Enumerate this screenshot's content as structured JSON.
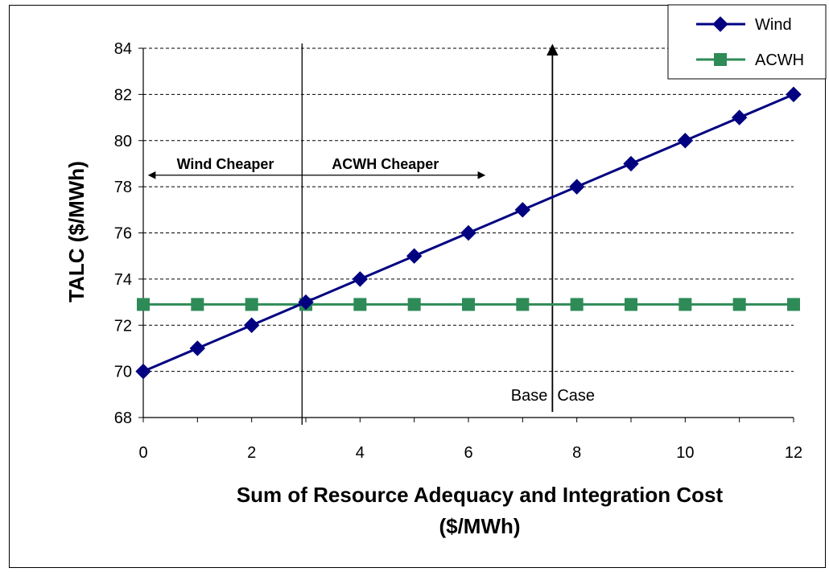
{
  "chart_data": {
    "type": "line",
    "title": "",
    "xlabel_line1": "Sum of Resource Adequacy and Integration Cost",
    "xlabel_line2": "($/MWh)",
    "ylabel": "TALC ($/MWh)",
    "xlim": [
      0,
      12
    ],
    "ylim": [
      68,
      84
    ],
    "x_ticks": [
      "0",
      "2",
      "4",
      "6",
      "8",
      "10",
      "12"
    ],
    "y_ticks": [
      "68",
      "70",
      "72",
      "74",
      "76",
      "78",
      "80",
      "82",
      "84"
    ],
    "grid": "horizontal dashed",
    "legend_position": "top-right",
    "x": [
      0,
      1,
      2,
      3,
      4,
      5,
      6,
      7,
      8,
      9,
      10,
      11,
      12
    ],
    "series": [
      {
        "name": "Wind",
        "color": "#000080",
        "marker": "diamond",
        "values": [
          70,
          71,
          72,
          73,
          74,
          75,
          76,
          77,
          78,
          79,
          80,
          81,
          82
        ]
      },
      {
        "name": "ACWH",
        "color": "#2e8b57",
        "marker": "square",
        "values": [
          72.9,
          72.9,
          72.9,
          72.9,
          72.9,
          72.9,
          72.9,
          72.9,
          72.9,
          72.9,
          72.9,
          72.9,
          72.9
        ]
      }
    ],
    "annotations": {
      "wind_cheaper": "Wind Cheaper",
      "acwh_cheaper": "ACWH Cheaper",
      "base_case": "Base Case",
      "breakeven_x": 2.93,
      "base_case_x": 7.55,
      "arrow_y": 78.5,
      "arrow_left_x": 0.1,
      "arrow_right_x": 6.3
    }
  }
}
